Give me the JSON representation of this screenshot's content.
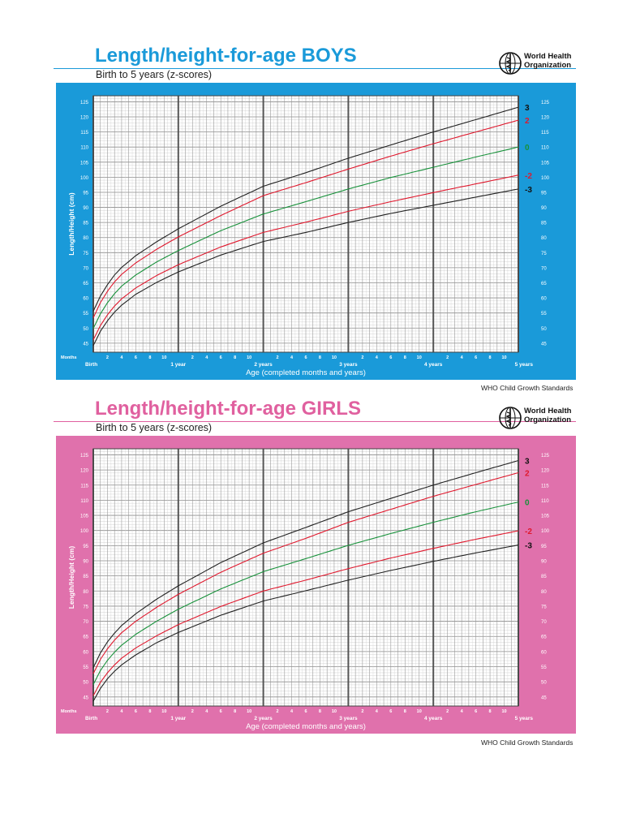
{
  "charts": [
    {
      "title": "Length/height-for-age BOYS",
      "subtitle": "Birth to 5 years (z-scores)",
      "org_name_line1": "World Health",
      "org_name_line2": "Organization",
      "footer": "WHO Child Growth Standards",
      "title_color": "#1a9ad9",
      "panel_color": "#1a9ad9",
      "axis": {
        "ylabel": "Length/Height (cm)",
        "xlabel": "Age (completed months and years)",
        "months_label": "Months",
        "year_labels": [
          "Birth",
          "1 year",
          "2 years",
          "3 years",
          "4 years",
          "5 years"
        ],
        "month_ticks": [
          "2",
          "4",
          "6",
          "8",
          "10"
        ],
        "yticks": [
          45,
          50,
          55,
          60,
          65,
          70,
          75,
          80,
          85,
          90,
          95,
          100,
          105,
          110,
          115,
          120,
          125
        ]
      },
      "chart_data": {
        "type": "line",
        "title": "Length/height-for-age BOYS",
        "subtitle": "Birth to 5 years (z-scores)",
        "xlabel": "Age (completed months and years)",
        "ylabel": "Length/Height (cm)",
        "x_unit": "months",
        "x": [
          0,
          1,
          2,
          3,
          4,
          6,
          9,
          12,
          18,
          24,
          30,
          36,
          42,
          48,
          54,
          60
        ],
        "xlim": [
          0,
          60
        ],
        "ylim": [
          42,
          127
        ],
        "grid": true,
        "series": [
          {
            "name": "3",
            "color": "#222222",
            "values": [
              55.6,
              60.6,
              64.4,
              67.6,
              70.1,
              74.0,
              78.7,
              82.9,
              90.4,
              97.0,
              101.5,
              106.3,
              110.7,
              115.0,
              119.1,
              123.2
            ]
          },
          {
            "name": "2",
            "color": "#e0182d",
            "values": [
              53.4,
              58.4,
              62.2,
              65.3,
              67.8,
              71.6,
              76.2,
              80.2,
              87.3,
              93.9,
              98.2,
              102.7,
              107.0,
              111.1,
              115.0,
              118.9
            ]
          },
          {
            "name": "0",
            "color": "#17913a",
            "values": [
              49.9,
              54.7,
              58.4,
              61.4,
              63.9,
              67.6,
              72.0,
              75.7,
              82.3,
              87.8,
              91.9,
              96.1,
              99.9,
              103.3,
              106.7,
              110.0
            ]
          },
          {
            "name": "-2",
            "color": "#e0182d",
            "values": [
              46.1,
              50.8,
              54.4,
              57.3,
              59.7,
              63.3,
              67.5,
              71.0,
              76.9,
              81.7,
              85.1,
              88.7,
              91.9,
              94.9,
              97.8,
              100.7
            ]
          },
          {
            "name": "-3",
            "color": "#222222",
            "values": [
              44.2,
              48.9,
              52.4,
              55.3,
              57.6,
              61.2,
              65.2,
              68.6,
              74.2,
              78.7,
              81.7,
              85.0,
              88.0,
              90.7,
              93.4,
              96.1
            ]
          }
        ]
      }
    },
    {
      "title": "Length/height-for-age GIRLS",
      "subtitle": "Birth to 5 years (z-scores)",
      "org_name_line1": "World Health",
      "org_name_line2": "Organization",
      "footer": "WHO Child Growth Standards",
      "title_color": "#e0609f",
      "panel_color": "#e071ac",
      "axis": {
        "ylabel": "Length/Height (cm)",
        "xlabel": "Age (completed months and years)",
        "months_label": "Months",
        "year_labels": [
          "Birth",
          "1 year",
          "2 years",
          "3 years",
          "4 years",
          "5 years"
        ],
        "month_ticks": [
          "2",
          "4",
          "6",
          "8",
          "10"
        ],
        "yticks": [
          45,
          50,
          55,
          60,
          65,
          70,
          75,
          80,
          85,
          90,
          95,
          100,
          105,
          110,
          115,
          120,
          125
        ]
      },
      "chart_data": {
        "type": "line",
        "title": "Length/height-for-age GIRLS",
        "subtitle": "Birth to 5 years (z-scores)",
        "xlabel": "Age (completed months and years)",
        "ylabel": "Length/Height (cm)",
        "x_unit": "months",
        "x": [
          0,
          1,
          2,
          3,
          4,
          6,
          9,
          12,
          18,
          24,
          30,
          36,
          42,
          48,
          54,
          60
        ],
        "xlim": [
          0,
          60
        ],
        "ylim": [
          42,
          127
        ],
        "grid": true,
        "series": [
          {
            "name": "3",
            "color": "#222222",
            "values": [
              54.7,
              59.5,
              63.2,
              66.1,
              68.6,
              72.5,
              77.4,
              81.7,
              89.4,
              95.9,
              101.0,
              106.2,
              110.6,
              115.0,
              119.1,
              123.1
            ]
          },
          {
            "name": "2",
            "color": "#e0182d",
            "values": [
              52.7,
              57.4,
              60.9,
              63.8,
              66.2,
              70.0,
              74.7,
              78.9,
              86.2,
              92.5,
              97.4,
              102.7,
              107.0,
              111.3,
              115.2,
              119.1
            ]
          },
          {
            "name": "0",
            "color": "#17913a",
            "values": [
              49.1,
              53.7,
              57.1,
              59.8,
              62.1,
              65.7,
              70.1,
              74.0,
              80.7,
              86.4,
              90.7,
              95.1,
              99.0,
              102.7,
              106.2,
              109.4
            ]
          },
          {
            "name": "-2",
            "color": "#e0182d",
            "values": [
              45.4,
              49.8,
              53.0,
              55.6,
              57.8,
              61.2,
              65.3,
              68.9,
              74.9,
              80.0,
              83.6,
              87.4,
              90.9,
              94.1,
              97.1,
              99.9
            ]
          },
          {
            "name": "-3",
            "color": "#222222",
            "values": [
              43.6,
              47.8,
              51.0,
              53.5,
              55.6,
              58.9,
              63.0,
              66.3,
              72.0,
              76.7,
              80.1,
              83.6,
              86.8,
              89.8,
              92.6,
              95.2
            ]
          }
        ]
      }
    }
  ]
}
